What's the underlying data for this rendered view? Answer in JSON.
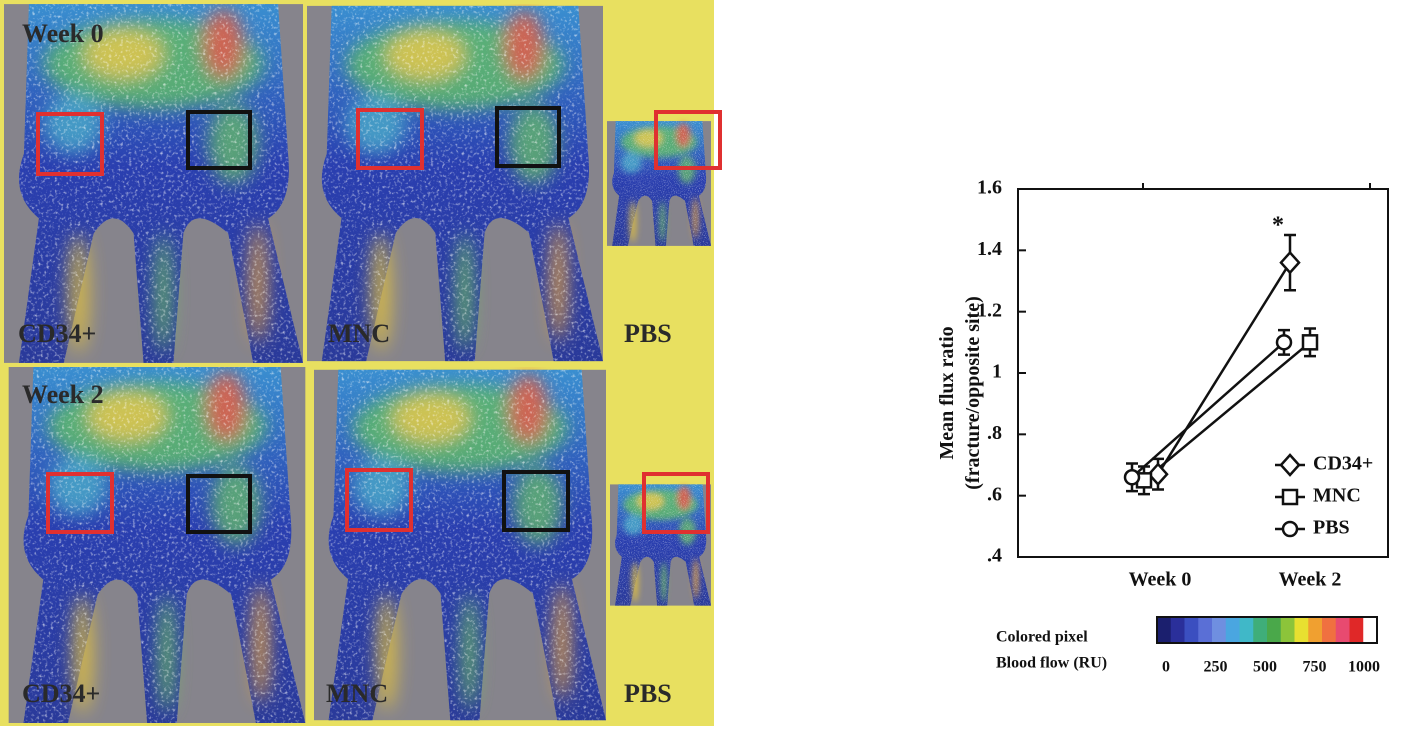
{
  "panels": {
    "rows": [
      {
        "label": "Week 0",
        "cells": [
          "CD34+",
          "MNC",
          "PBS"
        ]
      },
      {
        "label": "Week 2",
        "cells": [
          "CD34+",
          "MNC",
          "PBS"
        ]
      }
    ]
  },
  "colorbar": {
    "title": [
      "Colored pixel",
      "Blood flow (RU)"
    ],
    "ticks": [
      0,
      250,
      500,
      750,
      1000
    ],
    "range": [
      0,
      1000
    ],
    "colors": [
      "#1b1f6e",
      "#2a2f9a",
      "#3b4fc0",
      "#5a6fd6",
      "#6f8fe0",
      "#4aa6e0",
      "#40b8c8",
      "#3fae7a",
      "#4aa84a",
      "#8cc43a",
      "#e8e030",
      "#f0a030",
      "#f07040",
      "#e84a70",
      "#e02828",
      "#ffffff"
    ]
  },
  "chart_data": {
    "type": "line",
    "ylabel": [
      "Mean flux ratio",
      "(fracture/opposite site)"
    ],
    "categories": [
      "Week 0",
      "Week 2"
    ],
    "series": [
      {
        "name": "CD34+",
        "marker": "diamond",
        "color": "#111111",
        "values": [
          0.67,
          1.36
        ],
        "errors": [
          0.05,
          0.09
        ]
      },
      {
        "name": "MNC",
        "marker": "square",
        "color": "#111111",
        "values": [
          0.65,
          1.1
        ],
        "errors": [
          0.045,
          0.045
        ]
      },
      {
        "name": "PBS",
        "marker": "circle",
        "color": "#111111",
        "values": [
          0.66,
          1.1
        ],
        "errors": [
          0.045,
          0.04
        ]
      }
    ],
    "ylim": [
      0.4,
      1.6
    ],
    "yticks": [
      {
        "value": 0.4,
        "label": ".4"
      },
      {
        "value": 0.6,
        "label": ".6"
      },
      {
        "value": 0.8,
        "label": ".8"
      },
      1,
      1.2,
      1.4,
      1.6
    ],
    "annotations": [
      {
        "text": "*",
        "series": 0,
        "index": 1
      }
    ],
    "legend": "lower right"
  }
}
